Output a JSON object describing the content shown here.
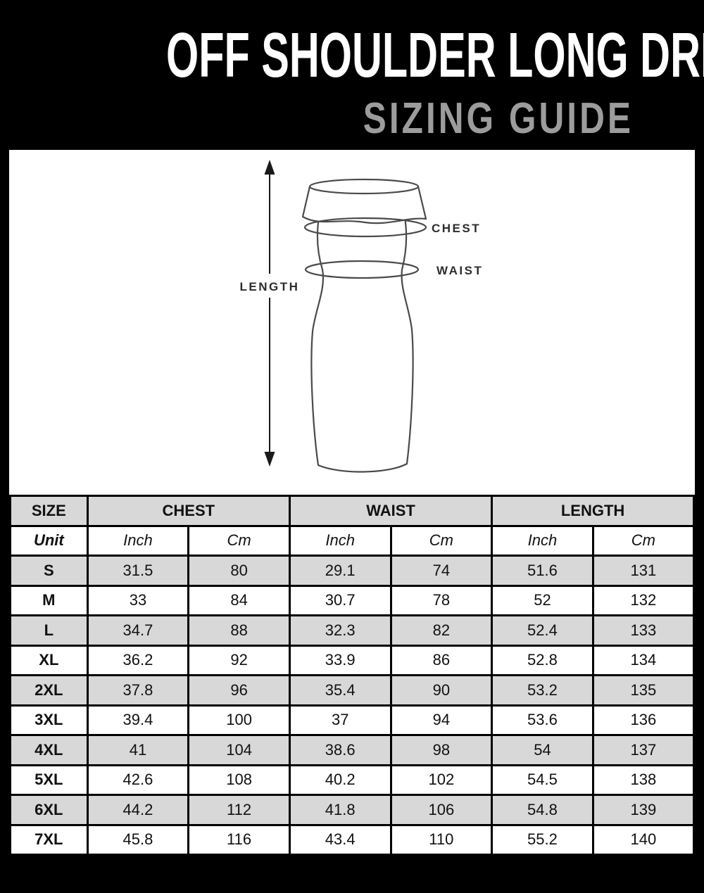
{
  "header": {
    "title": "OFF SHOULDER LONG DRESS",
    "subtitle": "SIZING GUIDE"
  },
  "diagram": {
    "length_label": "LENGTH",
    "chest_label": "CHEST",
    "waist_label": "WAIST"
  },
  "table": {
    "group_headers": [
      "SIZE",
      "CHEST",
      "WAIST",
      "LENGTH"
    ],
    "unit_row": [
      "Unit",
      "Inch",
      "Cm",
      "Inch",
      "Cm",
      "Inch",
      "Cm"
    ],
    "rows": [
      {
        "size": "S",
        "values": [
          "31.5",
          "80",
          "29.1",
          "74",
          "51.6",
          "131"
        ]
      },
      {
        "size": "M",
        "values": [
          "33",
          "84",
          "30.7",
          "78",
          "52",
          "132"
        ]
      },
      {
        "size": "L",
        "values": [
          "34.7",
          "88",
          "32.3",
          "82",
          "52.4",
          "133"
        ]
      },
      {
        "size": "XL",
        "values": [
          "36.2",
          "92",
          "33.9",
          "86",
          "52.8",
          "134"
        ]
      },
      {
        "size": "2XL",
        "values": [
          "37.8",
          "96",
          "35.4",
          "90",
          "53.2",
          "135"
        ]
      },
      {
        "size": "3XL",
        "values": [
          "39.4",
          "100",
          "37",
          "94",
          "53.6",
          "136"
        ]
      },
      {
        "size": "4XL",
        "values": [
          "41",
          "104",
          "38.6",
          "98",
          "54",
          "137"
        ]
      },
      {
        "size": "5XL",
        "values": [
          "42.6",
          "108",
          "40.2",
          "102",
          "54.5",
          "138"
        ]
      },
      {
        "size": "6XL",
        "values": [
          "44.2",
          "112",
          "41.8",
          "106",
          "54.8",
          "139"
        ]
      },
      {
        "size": "7XL",
        "values": [
          "45.8",
          "116",
          "43.4",
          "110",
          "55.2",
          "140"
        ]
      }
    ]
  },
  "colors": {
    "bg": "#000000",
    "title": "#ffffff",
    "subtitle": "#9c9c9c",
    "panel": "#ffffff",
    "row-gray": "#d8d8d8",
    "border": "#000000",
    "outline": "#4a4a4a",
    "label": "#2d2d2d",
    "cell-text": "#111111"
  }
}
